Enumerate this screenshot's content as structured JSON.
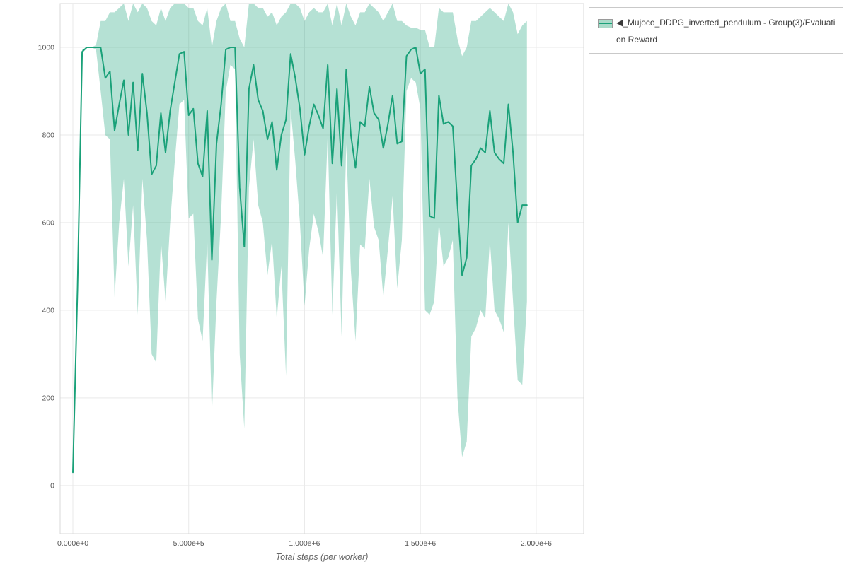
{
  "colors": {
    "background": "#ffffff",
    "grid": "#e9e9e9",
    "axis_border": "#d8d8d8",
    "tick_text": "#545454",
    "axis_title": "#666666",
    "legend_border": "#c9c9c9",
    "legend_text": "#3a3a3a"
  },
  "legend": {
    "collapse_icon": "◀",
    "label": "_Mujoco_DDPG_inverted_pendulum - Group(3)/Evaluation Reward",
    "swatch_fill": "#a9dbc9",
    "swatch_line": "#1aa179"
  },
  "chart_data": {
    "type": "line",
    "title": "",
    "xlabel": "Total steps (per worker)",
    "ylabel": "",
    "grid": true,
    "legend_position": "top-right",
    "xlim": [
      -55000,
      2205000
    ],
    "ylim": [
      -110,
      1100
    ],
    "x_ticks": [
      0,
      500000,
      1000000,
      1500000,
      2000000
    ],
    "x_tick_labels": [
      "0.000e+0",
      "5.000e+5",
      "1.000e+6",
      "1.500e+6",
      "2.000e+6"
    ],
    "y_ticks": [
      0,
      200,
      400,
      600,
      800,
      1000
    ],
    "series": [
      {
        "name": "Mujoco_DDPG_inverted_pendulum - Group(3)/Evaluation Reward",
        "color": "#1aa179",
        "band_color": "rgba(26,161,121,0.32)",
        "x": [
          0,
          20000,
          40000,
          60000,
          80000,
          100000,
          120000,
          140000,
          160000,
          180000,
          200000,
          220000,
          240000,
          260000,
          280000,
          300000,
          320000,
          340000,
          360000,
          380000,
          400000,
          420000,
          440000,
          460000,
          480000,
          500000,
          520000,
          540000,
          560000,
          580000,
          600000,
          620000,
          640000,
          660000,
          680000,
          700000,
          720000,
          740000,
          760000,
          780000,
          800000,
          820000,
          840000,
          860000,
          880000,
          900000,
          920000,
          940000,
          960000,
          980000,
          1000000,
          1020000,
          1040000,
          1060000,
          1080000,
          1100000,
          1120000,
          1140000,
          1160000,
          1180000,
          1200000,
          1220000,
          1240000,
          1260000,
          1280000,
          1300000,
          1320000,
          1340000,
          1360000,
          1380000,
          1400000,
          1420000,
          1440000,
          1460000,
          1480000,
          1500000,
          1520000,
          1540000,
          1560000,
          1580000,
          1600000,
          1620000,
          1640000,
          1660000,
          1680000,
          1700000,
          1720000,
          1740000,
          1760000,
          1780000,
          1800000,
          1820000,
          1840000,
          1860000,
          1880000,
          1900000,
          1920000,
          1940000,
          1960000
        ],
        "mean": [
          30,
          450,
          990,
          1000,
          1000,
          1000,
          1000,
          930,
          945,
          810,
          870,
          925,
          800,
          920,
          765,
          940,
          850,
          710,
          730,
          850,
          760,
          855,
          920,
          985,
          990,
          845,
          860,
          735,
          705,
          855,
          515,
          780,
          870,
          995,
          1000,
          1000,
          680,
          545,
          905,
          960,
          880,
          855,
          790,
          830,
          720,
          800,
          835,
          985,
          930,
          860,
          755,
          820,
          870,
          845,
          815,
          960,
          735,
          905,
          730,
          950,
          800,
          725,
          830,
          820,
          910,
          850,
          835,
          770,
          825,
          890,
          780,
          785,
          980,
          995,
          1000,
          940,
          950,
          615,
          610,
          890,
          825,
          830,
          820,
          640,
          480,
          520,
          730,
          745,
          770,
          760,
          855,
          760,
          745,
          735,
          870,
          760,
          600,
          640,
          640
        ],
        "lower": [
          25,
          440,
          985,
          1000,
          1000,
          995,
          900,
          800,
          790,
          430,
          600,
          700,
          500,
          640,
          390,
          700,
          560,
          300,
          280,
          560,
          420,
          600,
          740,
          870,
          880,
          610,
          620,
          380,
          330,
          560,
          160,
          420,
          620,
          900,
          960,
          950,
          300,
          130,
          680,
          790,
          640,
          600,
          480,
          560,
          380,
          500,
          250,
          860,
          740,
          600,
          410,
          540,
          620,
          580,
          520,
          800,
          390,
          680,
          340,
          780,
          490,
          330,
          550,
          540,
          700,
          590,
          560,
          430,
          540,
          660,
          450,
          560,
          900,
          930,
          920,
          860,
          400,
          390,
          420,
          600,
          500,
          520,
          560,
          200,
          65,
          100,
          340,
          360,
          400,
          380,
          560,
          400,
          380,
          350,
          600,
          420,
          240,
          230,
          420
        ],
        "upper": [
          35,
          460,
          995,
          1000,
          1000,
          1005,
          1060,
          1060,
          1080,
          1080,
          1090,
          1100,
          1060,
          1100,
          1080,
          1100,
          1090,
          1060,
          1050,
          1090,
          1060,
          1090,
          1100,
          1100,
          1100,
          1090,
          1090,
          1060,
          1050,
          1090,
          1000,
          1060,
          1090,
          1100,
          1060,
          1060,
          1020,
          1000,
          1100,
          1100,
          1090,
          1090,
          1070,
          1080,
          1050,
          1070,
          1080,
          1100,
          1100,
          1090,
          1060,
          1080,
          1090,
          1080,
          1080,
          1100,
          1050,
          1100,
          1050,
          1100,
          1070,
          1050,
          1080,
          1080,
          1100,
          1090,
          1080,
          1060,
          1080,
          1100,
          1060,
          1060,
          1050,
          1045,
          1045,
          1040,
          1040,
          1000,
          1000,
          1090,
          1080,
          1080,
          1080,
          1020,
          980,
          1000,
          1060,
          1060,
          1070,
          1080,
          1090,
          1080,
          1070,
          1060,
          1100,
          1080,
          1030,
          1050,
          1060
        ]
      }
    ]
  }
}
